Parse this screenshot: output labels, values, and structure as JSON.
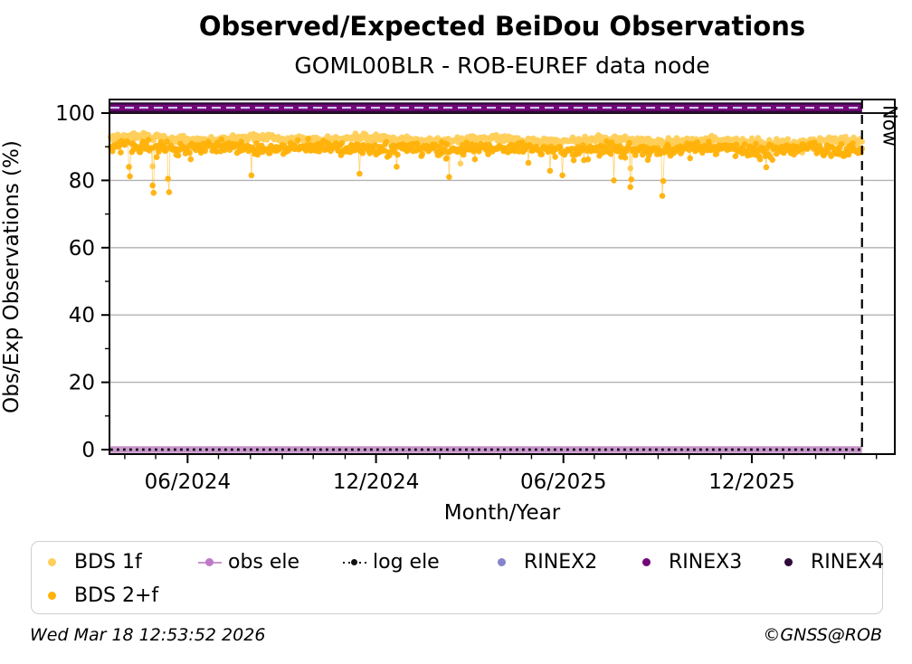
{
  "chart_data": {
    "type": "scatter",
    "title": "Observed/Expected BeiDou Observations",
    "subtitle": "GOML00BLR - ROB-EUREF data node",
    "xlabel": "Month/Year",
    "ylabel": "Obs/Exp Observations (%)",
    "ylim": [
      -1.5,
      104.2
    ],
    "grid": true,
    "grid_color": "#b2b2b2",
    "yticks": [
      0,
      20,
      40,
      60,
      80,
      100
    ],
    "ytick_labels": [
      "0",
      "20",
      "40",
      "60",
      "80",
      "100"
    ],
    "yminorticks": [
      10,
      30,
      50,
      70,
      90
    ],
    "xtick_labels": [
      "06/2024",
      "12/2024",
      "06/2025",
      "12/2025"
    ],
    "xtick_months": [
      "2024-06",
      "2024-12",
      "2025-06",
      "2025-12"
    ],
    "x_range_days": [
      "2024-03-18",
      "2026-03-18"
    ],
    "reference_line_y": 100,
    "now_line": {
      "label": "Now",
      "date": "2026-03-18",
      "color": "#000000"
    },
    "series": [
      {
        "name": "BDS 1f",
        "kind": "daily-scatter",
        "color": "#FFCF5A",
        "mean_start": 92.7,
        "mean_end": 91.4,
        "wiggle_amp": 0.45,
        "wiggle_period": 115,
        "noise_sd": 0.55,
        "tail_prob": 0.05,
        "tail_max": 2.2,
        "deep_prob": 0.008,
        "deep_max": 4.5,
        "clip_max": 95.2,
        "seed": 101,
        "outliers_day_value": [
          [
            41,
            84.2
          ],
          [
            340,
            85.0
          ],
          [
            505,
            83.6
          ]
        ]
      },
      {
        "name": "BDS 2+f",
        "kind": "daily-scatter",
        "color": "#FFB20A",
        "mean_start": 89.9,
        "mean_end": 89.3,
        "wiggle_amp": 0.35,
        "wiggle_period": 95,
        "noise_sd": 0.85,
        "tail_prob": 0.1,
        "tail_max": 3.0,
        "deep_prob": 0.015,
        "deep_max": 5.0,
        "clip_max": 93.0,
        "seed": 202,
        "outliers_day_value": [
          [
            18,
            84.0
          ],
          [
            19,
            81.2
          ],
          [
            41,
            78.5
          ],
          [
            42,
            76.3
          ],
          [
            56,
            80.5
          ],
          [
            57,
            76.5
          ],
          [
            137,
            81.5
          ],
          [
            242,
            82.0
          ],
          [
            329,
            81.0
          ],
          [
            439,
            81.5
          ],
          [
            489,
            80.0
          ],
          [
            505,
            78.0
          ],
          [
            506,
            80.3
          ],
          [
            536,
            75.4
          ],
          [
            537,
            79.8
          ]
        ]
      },
      {
        "name": "obs ele",
        "kind": "hline",
        "y": 0,
        "color": "#C795CB",
        "width": 7.5
      },
      {
        "name": "log ele",
        "kind": "hline-dotted",
        "y": 0,
        "color": "#111111",
        "width": 2.8,
        "dash": "2.8 4.2"
      },
      {
        "name": "RINEX2",
        "kind": "hline-dashed",
        "y": 101.6,
        "color": "#8583C9",
        "overlay_color": "#CFC9EE",
        "width": 2.2,
        "dash": "10 6"
      },
      {
        "name": "RINEX3",
        "kind": "hline",
        "y": 101.6,
        "color": "#730779",
        "width": 7
      },
      {
        "name": "RINEX4",
        "kind": "hline",
        "y": 101.6,
        "color": "#2E0A38",
        "width": 11.5
      }
    ],
    "legend": {
      "items": [
        {
          "label": "BDS 1f",
          "marker": "dot",
          "color": "#FFCF5A"
        },
        {
          "label": "obs ele",
          "marker": "line-dot",
          "color": "#C795CB",
          "dot_color": "#C078C9"
        },
        {
          "label": "log ele",
          "marker": "dotted-line-dot",
          "color": "#111111"
        },
        {
          "label": "RINEX2",
          "marker": "dot",
          "color": "#8583C9"
        },
        {
          "label": "RINEX3",
          "marker": "dot",
          "color": "#730779"
        },
        {
          "label": "RINEX4",
          "marker": "dot",
          "color": "#2E0A38"
        },
        {
          "label": "BDS 2+f",
          "marker": "dot",
          "color": "#FFB20A"
        }
      ]
    }
  },
  "footer": {
    "timestamp": "Wed Mar 18 12:53:52 2026",
    "credit": "©GNSS@ROB"
  }
}
